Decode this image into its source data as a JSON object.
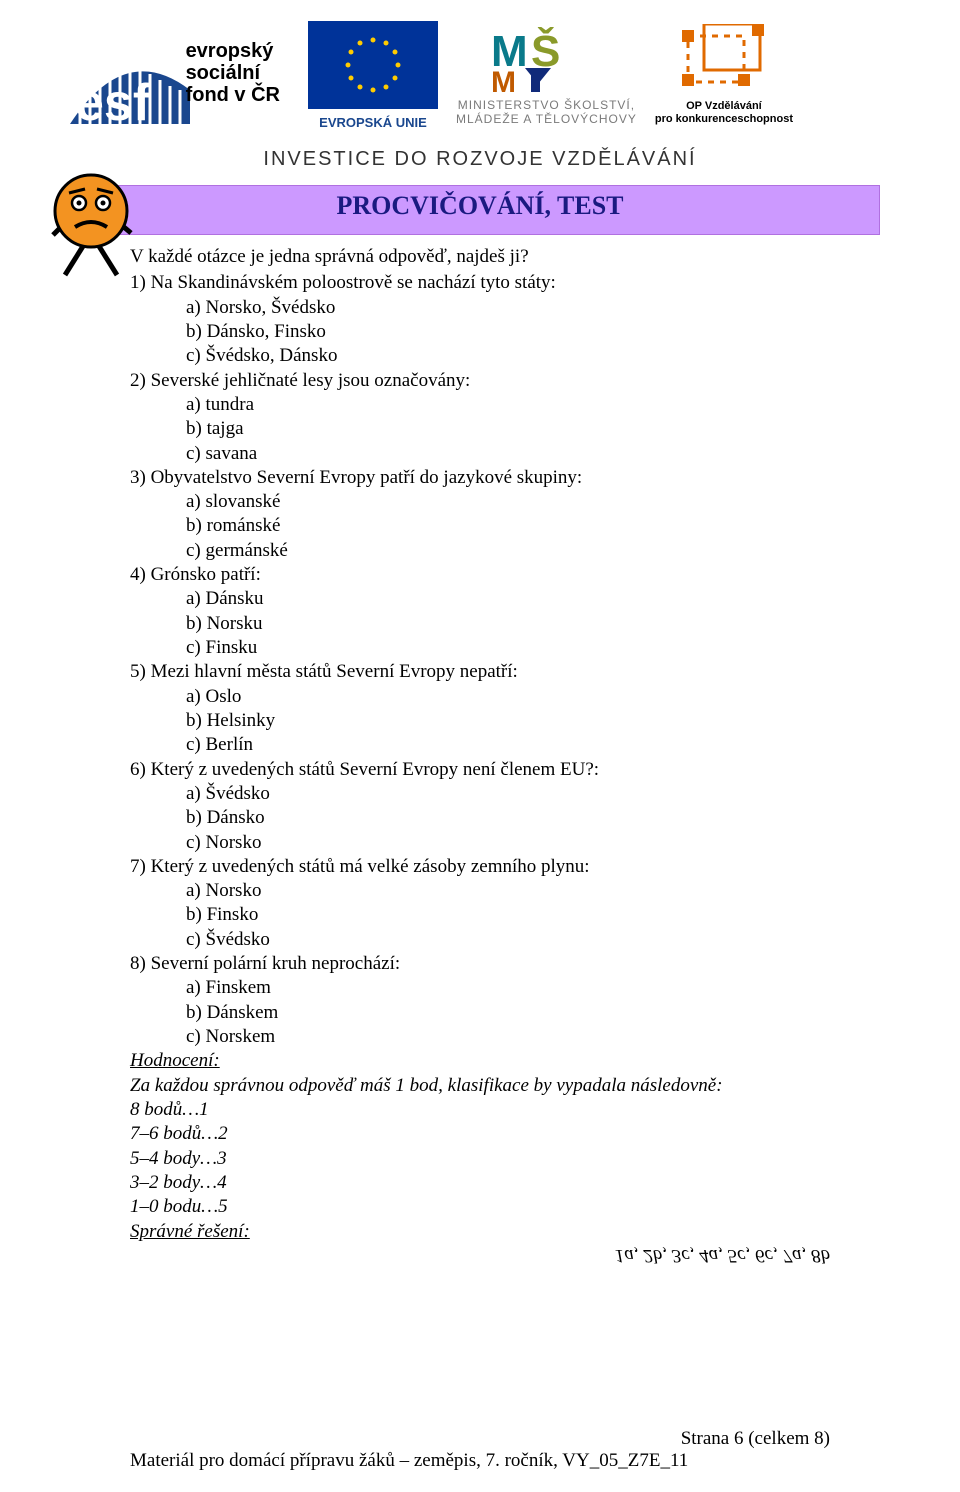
{
  "logos": {
    "esf": {
      "lines": [
        "evropský",
        "sociální",
        "fond v ČR"
      ]
    },
    "eu_caption": "EVROPSKÁ UNIE",
    "msmt": {
      "line1": "MINISTERSTVO ŠKOLSTVÍ,",
      "line2": "MLÁDEŽE A TĚLOVÝCHOVY"
    },
    "op": {
      "line1": "OP Vzdělávání",
      "line2": "pro konkurenceschopnost"
    },
    "investice": "INVESTICE DO ROZVOJE VZDĚLÁVÁNÍ"
  },
  "banner": {
    "title": "PROCVIČOVÁNÍ, TEST"
  },
  "intro": "V každé otázce je jedna správná odpověď, najdeš ji?",
  "questions": [
    {
      "n": "1)",
      "text": "Na Skandinávském poloostrově se nachází tyto státy:",
      "opts": [
        {
          "l": "a)",
          "t": "Norsko, Švédsko"
        },
        {
          "l": "b)",
          "t": "Dánsko, Finsko"
        },
        {
          "l": "c)",
          "t": "Švédsko, Dánsko"
        }
      ]
    },
    {
      "n": "2)",
      "text": "Severské jehličnaté lesy jsou označovány:",
      "opts": [
        {
          "l": "a)",
          "t": "tundra"
        },
        {
          "l": "b)",
          "t": "tajga"
        },
        {
          "l": "c)",
          "t": "savana"
        }
      ]
    },
    {
      "n": "3)",
      "text": "Obyvatelstvo Severní Evropy patří do jazykové skupiny:",
      "opts": [
        {
          "l": "a)",
          "t": "slovanské"
        },
        {
          "l": "b)",
          "t": "románské"
        },
        {
          "l": "c)",
          "t": "germánské"
        }
      ]
    },
    {
      "n": "4)",
      "text": "Grónsko patří:",
      "opts": [
        {
          "l": "a)",
          "t": "Dánsku"
        },
        {
          "l": "b)",
          "t": "Norsku"
        },
        {
          "l": "c)",
          "t": "Finsku"
        }
      ]
    },
    {
      "n": "5)",
      "text": "Mezi hlavní města států Severní Evropy nepatří:",
      "opts": [
        {
          "l": "a)",
          "t": "Oslo"
        },
        {
          "l": "b)",
          "t": "Helsinky"
        },
        {
          "l": "c)",
          "t": "Berlín"
        }
      ]
    },
    {
      "n": "6)",
      "text": "Který z uvedených států Severní Evropy není členem EU?:",
      "opts": [
        {
          "l": "a)",
          "t": "Švédsko"
        },
        {
          "l": "b)",
          "t": "Dánsko"
        },
        {
          "l": "c)",
          "t": "Norsko"
        }
      ]
    },
    {
      "n": "7)",
      "text": "Který z uvedených států má velké zásoby zemního plynu:",
      "opts": [
        {
          "l": "a)",
          "t": "Norsko"
        },
        {
          "l": "b)",
          "t": "Finsko"
        },
        {
          "l": "c)",
          "t": "Švédsko"
        }
      ]
    },
    {
      "n": "8)",
      "text": "Severní polární kruh neprochází:",
      "opts": [
        {
          "l": "a)",
          "t": "Finskem"
        },
        {
          "l": "b)",
          "t": "Dánskem"
        },
        {
          "l": "c)",
          "t": "Norskem"
        }
      ]
    }
  ],
  "eval": {
    "heading": "Hodnocení:",
    "sentence": "Za každou správnou odpověď máš 1 bod, klasifikace by vypadala následovně:",
    "grades": [
      "8 bodů…1",
      "7–6 bodů…2",
      "5–4 body…3",
      "3–2 body…4",
      "1–0 bodu…5"
    ],
    "solution_heading": "Správné řešení:"
  },
  "answers_flipped": "1a, 2b, 3c, 4a, 5c, 6c, 7a, 8b",
  "footer": {
    "page": "Strana 6 (celkem 8)",
    "material": "Materiál pro domácí přípravu žáků – zeměpis, 7. ročník, VY_05_Z7E_11"
  }
}
